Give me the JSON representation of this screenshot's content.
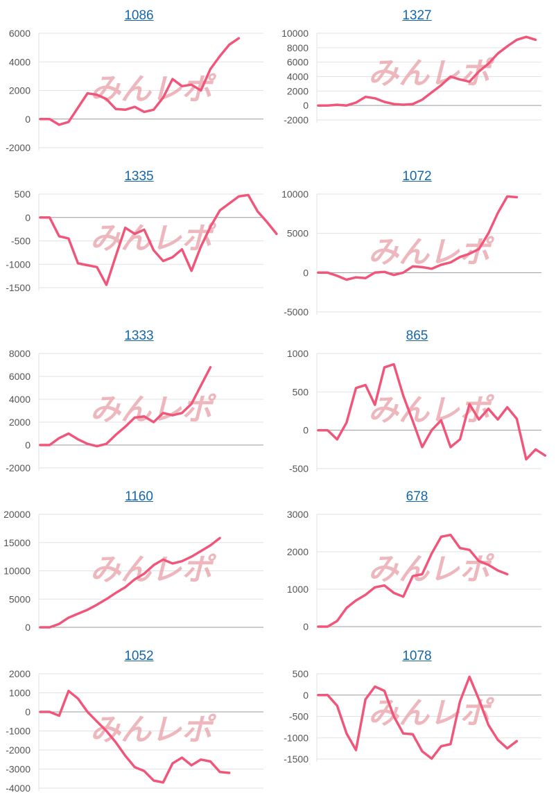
{
  "colors": {
    "line": "#f0567a",
    "grid": "#e2e2e2",
    "zero": "#9a9a9a",
    "title": "#1565a8",
    "tick": "#555555"
  },
  "watermark": {
    "text": "みんレポ"
  },
  "chart_data": [
    {
      "type": "line",
      "title": "1086",
      "yticks": [
        -2000,
        0,
        2000,
        4000,
        6000
      ],
      "ylim": [
        -2000,
        6000
      ],
      "values": [
        0,
        0,
        -400,
        -200,
        800,
        1800,
        1700,
        1400,
        700,
        650,
        850,
        500,
        650,
        1500,
        2800,
        2300,
        2400,
        2000,
        3500,
        4400,
        5200,
        5650
      ]
    },
    {
      "type": "line",
      "title": "1327",
      "yticks": [
        -2000,
        0,
        2000,
        4000,
        6000,
        8000,
        10000
      ],
      "ylim": [
        -2000,
        10000
      ],
      "values": [
        0,
        0,
        100,
        0,
        400,
        1200,
        1000,
        500,
        200,
        100,
        200,
        800,
        1800,
        2800,
        4000,
        3600,
        3300,
        4700,
        5800,
        7200,
        8200,
        9100,
        9500,
        9100
      ]
    },
    {
      "type": "line",
      "title": "1335",
      "yticks": [
        -1500,
        -1000,
        -500,
        0,
        500
      ],
      "ylim": [
        -1500,
        500
      ],
      "values": [
        0,
        0,
        -400,
        -450,
        -980,
        -1020,
        -1060,
        -1440,
        -820,
        -220,
        -350,
        -260,
        -700,
        -930,
        -850,
        -680,
        -1140,
        -620,
        -200,
        150,
        300,
        450,
        480,
        130,
        -100,
        -350
      ]
    },
    {
      "type": "line",
      "title": "1072",
      "yticks": [
        -5000,
        0,
        5000,
        10000
      ],
      "ylim": [
        -5000,
        10000
      ],
      "values": [
        0,
        0,
        -400,
        -900,
        -600,
        -700,
        0,
        100,
        -300,
        0,
        800,
        700,
        500,
        1000,
        1300,
        2000,
        2400,
        3000,
        5000,
        7600,
        9700,
        9600
      ]
    },
    {
      "type": "line",
      "title": "1333",
      "yticks": [
        -2000,
        0,
        2000,
        4000,
        6000,
        8000
      ],
      "ylim": [
        -2000,
        8000
      ],
      "values": [
        0,
        0,
        600,
        1000,
        500,
        100,
        -100,
        100,
        900,
        1600,
        2400,
        2500,
        2000,
        2800,
        2600,
        2800,
        3600,
        5200,
        6800
      ]
    },
    {
      "type": "line",
      "title": "865",
      "yticks": [
        -500,
        0,
        500,
        1000
      ],
      "ylim": [
        -500,
        1000
      ],
      "values": [
        0,
        0,
        -120,
        100,
        550,
        590,
        330,
        820,
        860,
        450,
        120,
        -220,
        0,
        130,
        -220,
        -120,
        340,
        140,
        280,
        140,
        300,
        150,
        -380,
        -250,
        -330
      ]
    },
    {
      "type": "line",
      "title": "1160",
      "yticks": [
        0,
        5000,
        10000,
        15000,
        20000
      ],
      "ylim": [
        0,
        20000
      ],
      "values": [
        0,
        0,
        600,
        1700,
        2400,
        3100,
        4000,
        5000,
        6100,
        7100,
        8500,
        9500,
        11000,
        12000,
        11300,
        11700,
        12500,
        13500,
        14500,
        15800
      ]
    },
    {
      "type": "line",
      "title": "678",
      "yticks": [
        0,
        1000,
        2000,
        3000
      ],
      "ylim": [
        0,
        3000
      ],
      "values": [
        0,
        0,
        150,
        500,
        700,
        850,
        1050,
        1100,
        900,
        800,
        1350,
        1400,
        1950,
        2400,
        2450,
        2100,
        2050,
        1750,
        1650,
        1500,
        1400
      ]
    },
    {
      "type": "line",
      "title": "1052",
      "yticks": [
        -4000,
        -3000,
        -2000,
        -1000,
        0,
        1000,
        2000
      ],
      "ylim": [
        -4000,
        2000
      ],
      "values": [
        0,
        0,
        -200,
        1100,
        700,
        0,
        -500,
        -1000,
        -1600,
        -2300,
        -2900,
        -3100,
        -3600,
        -3700,
        -2700,
        -2400,
        -2800,
        -2500,
        -2600,
        -3150,
        -3200
      ]
    },
    {
      "type": "line",
      "title": "1078",
      "yticks": [
        -1500,
        -1000,
        -500,
        0,
        500
      ],
      "ylim": [
        -1500,
        500
      ],
      "values": [
        0,
        0,
        -250,
        -900,
        -1290,
        -100,
        200,
        100,
        -500,
        -900,
        -920,
        -1320,
        -1490,
        -1200,
        -1150,
        -150,
        430,
        -100,
        -700,
        -1050,
        -1250,
        -1080
      ]
    }
  ]
}
